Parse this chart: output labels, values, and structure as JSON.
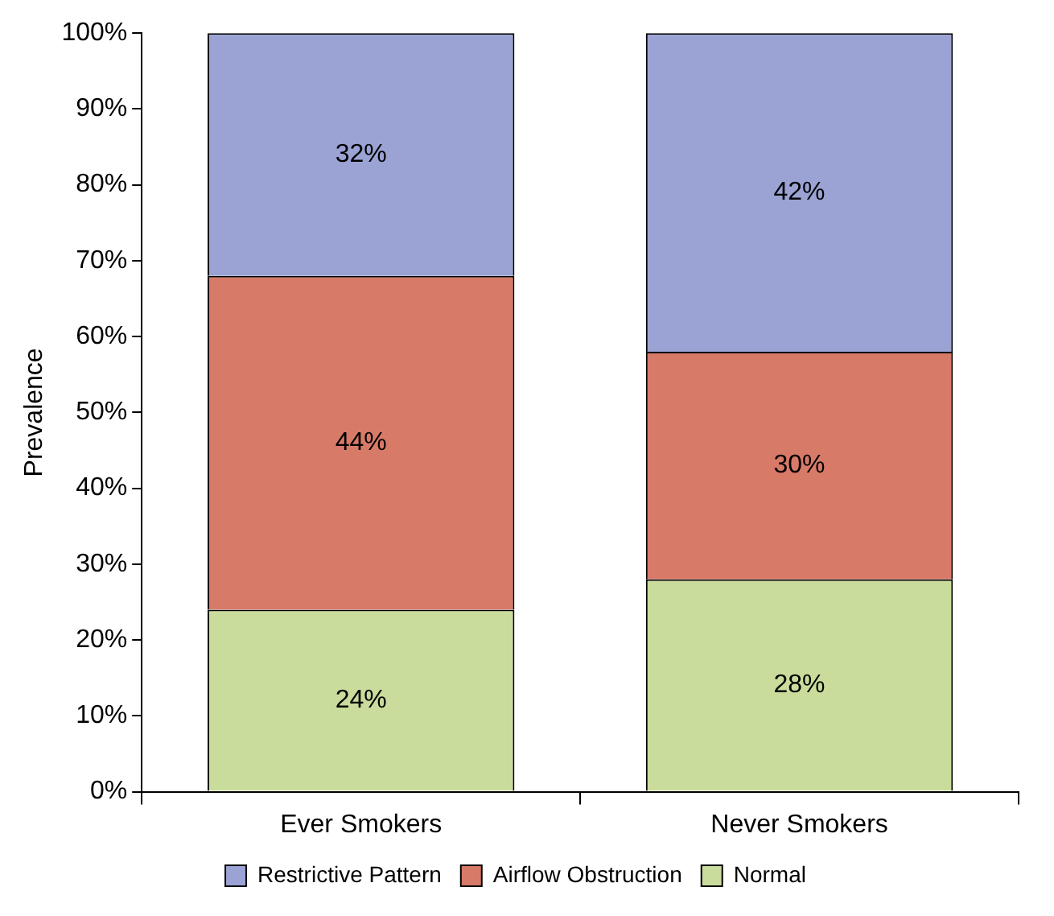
{
  "chart_data": {
    "type": "bar",
    "ylabel": "Prevalence",
    "categories": [
      "Ever Smokers",
      "Never Smokers"
    ],
    "stacked": true,
    "legend": "bottom",
    "grid": false,
    "ylim": [
      0,
      100
    ],
    "yticks": [
      {
        "value": 0,
        "label": "0%"
      },
      {
        "value": 10,
        "label": "10%"
      },
      {
        "value": 20,
        "label": "20%"
      },
      {
        "value": 30,
        "label": "30%"
      },
      {
        "value": 40,
        "label": "40%"
      },
      {
        "value": 50,
        "label": "50%"
      },
      {
        "value": 60,
        "label": "60%"
      },
      {
        "value": 70,
        "label": "70%"
      },
      {
        "value": 80,
        "label": "80%"
      },
      {
        "value": 90,
        "label": "90%"
      },
      {
        "value": 100,
        "label": "100%"
      }
    ],
    "series": [
      {
        "name": "Normal",
        "color": "#c9dc9c",
        "values": [
          24,
          28
        ],
        "value_labels": [
          "24%",
          "28%"
        ]
      },
      {
        "name": "Airflow Obstruction",
        "color": "#d87a68",
        "values": [
          44,
          30
        ],
        "value_labels": [
          "44%",
          "30%"
        ]
      },
      {
        "name": "Restrictive Pattern",
        "color": "#9aa3d4",
        "values": [
          32,
          42
        ],
        "value_labels": [
          "32%",
          "42%"
        ]
      }
    ]
  }
}
